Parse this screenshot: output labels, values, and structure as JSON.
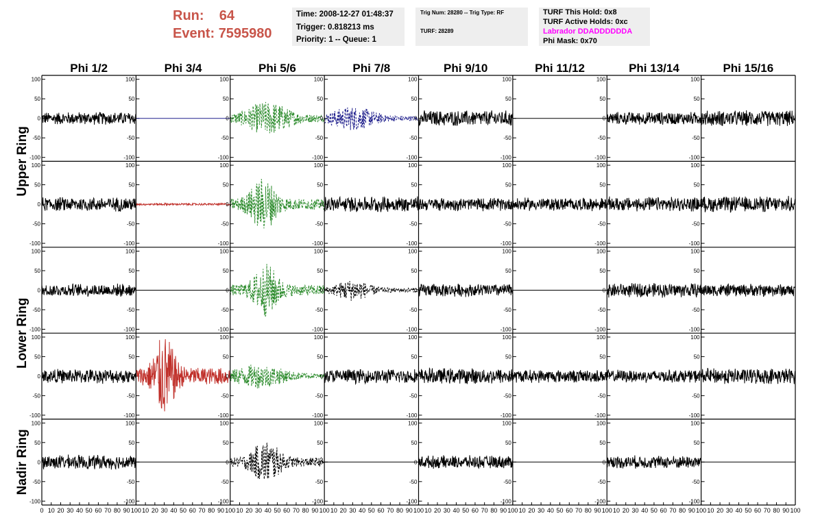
{
  "header": {
    "run_label": "Run:",
    "run_value": "64",
    "event_label": "Event:",
    "event_value": "7595980"
  },
  "info_time": {
    "time": "Time: 2008-12-27 01:48:37",
    "trigger": "Trigger: 0.818213 ms",
    "priority": "Priority: 1 -- Queue: 1"
  },
  "info_trig": {
    "trig": "Trig Num: 28280 -- Trig Type: RF",
    "turf": "TURF: 28289"
  },
  "info_turf": {
    "this_hold": "TURF This Hold: 0x8",
    "active_holds": "TURF Active Holds: 0xc",
    "labrador": "Labrador DDADDDDDDA",
    "phi_mask": "Phi Mask: 0x70",
    "labrador_color": "#ff00ff"
  },
  "chart_data": {
    "type": "line",
    "columns": [
      "Phi 1/2",
      "Phi 3/4",
      "Phi 5/6",
      "Phi 7/8",
      "Phi 9/10",
      "Phi 11/12",
      "Phi 13/14",
      "Phi 15/16"
    ],
    "ring_labels": [
      {
        "label": "Upper Ring",
        "rows": [
          0,
          1
        ]
      },
      {
        "label": "Lower Ring",
        "rows": [
          2,
          3
        ]
      },
      {
        "label": "Nadir Ring",
        "rows": [
          4
        ]
      }
    ],
    "ylim": [
      -110,
      110
    ],
    "yticks": [
      100,
      50,
      0,
      -50,
      -100
    ],
    "xlim": [
      0,
      100
    ],
    "xticks": [
      0,
      10,
      20,
      30,
      40,
      50,
      60,
      70,
      80,
      90,
      100
    ],
    "colors": {
      "k": "#000000",
      "g": "#2a8a2a",
      "b": "#1f1f8c",
      "r": "#c0302a"
    },
    "traces": [
      [
        {
          "type": "noise",
          "amp": 18,
          "color": "k"
        },
        {
          "type": "flat",
          "color": "b"
        },
        {
          "type": "burst",
          "amp": 35,
          "center": 40,
          "width": 25,
          "color": "g",
          "dashed": true
        },
        {
          "type": "burst",
          "amp": 25,
          "center": 30,
          "width": 25,
          "color": "b",
          "dashed": true
        },
        {
          "type": "noise",
          "amp": 22,
          "color": "k"
        },
        {
          "type": "flat",
          "color": "k"
        },
        {
          "type": "noise",
          "amp": 18,
          "color": "k"
        },
        {
          "type": "noise",
          "amp": 22,
          "color": "k"
        }
      ],
      [
        {
          "type": "noise",
          "amp": 20,
          "color": "k"
        },
        {
          "type": "noise",
          "amp": 3,
          "color": "r"
        },
        {
          "type": "burst",
          "amp": 55,
          "center": 35,
          "width": 15,
          "color": "g",
          "dashed": true
        },
        {
          "type": "noise",
          "amp": 22,
          "color": "k"
        },
        {
          "type": "noise",
          "amp": 18,
          "color": "k"
        },
        {
          "type": "noise",
          "amp": 18,
          "color": "k"
        },
        {
          "type": "noise",
          "amp": 20,
          "color": "k"
        },
        {
          "type": "noise",
          "amp": 22,
          "color": "k"
        }
      ],
      [
        {
          "type": "noise",
          "amp": 18,
          "color": "k"
        },
        {
          "type": "flat",
          "color": "k"
        },
        {
          "type": "burst",
          "amp": 55,
          "center": 38,
          "width": 14,
          "color": "g",
          "dashed": true
        },
        {
          "type": "burst",
          "amp": 22,
          "center": 30,
          "width": 20,
          "color": "k",
          "dashed": true
        },
        {
          "type": "noise",
          "amp": 18,
          "color": "k"
        },
        {
          "type": "flat",
          "color": "k"
        },
        {
          "type": "noise",
          "amp": 20,
          "color": "k"
        },
        {
          "type": "noise",
          "amp": 18,
          "color": "k"
        }
      ],
      [
        {
          "type": "noise",
          "amp": 20,
          "color": "k"
        },
        {
          "type": "burst",
          "amp": 85,
          "center": 30,
          "width": 12,
          "color": "r",
          "dashed": false
        },
        {
          "type": "burst",
          "amp": 25,
          "center": 30,
          "width": 30,
          "color": "g",
          "dashed": true
        },
        {
          "type": "noise",
          "amp": 20,
          "color": "k"
        },
        {
          "type": "noise",
          "amp": 22,
          "color": "k"
        },
        {
          "type": "noise",
          "amp": 18,
          "color": "k"
        },
        {
          "type": "noise",
          "amp": 18,
          "color": "k"
        },
        {
          "type": "noise",
          "amp": 22,
          "color": "k"
        }
      ],
      [
        {
          "type": "noise",
          "amp": 20,
          "color": "k"
        },
        {
          "type": "flat",
          "color": "k"
        },
        {
          "type": "burst",
          "amp": 45,
          "center": 38,
          "width": 16,
          "color": "k",
          "dashed": true
        },
        {
          "type": "flat",
          "color": "k"
        },
        {
          "type": "noise",
          "amp": 18,
          "color": "k"
        },
        {
          "type": "flat",
          "color": "k"
        },
        {
          "type": "noise",
          "amp": 18,
          "color": "k"
        },
        {
          "type": "flat",
          "color": "k"
        }
      ]
    ]
  }
}
